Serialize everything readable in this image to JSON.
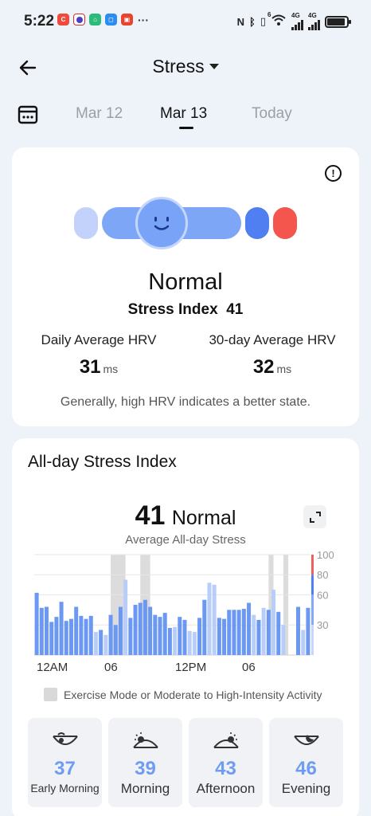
{
  "status_bar": {
    "time": "5:22",
    "network": [
      "4G",
      "4G"
    ],
    "wifi_badge": "6",
    "notification_icons": [
      "app-c-icon",
      "app-robot-icon",
      "app-home-icon",
      "app-chat-icon",
      "app-red-icon"
    ],
    "more_indicator": "···"
  },
  "header": {
    "title": "Stress",
    "back_icon": "back-arrow-icon"
  },
  "date_tabs": {
    "items": [
      "Mar 12",
      "Mar 13",
      "Today"
    ],
    "selected": "Mar 13"
  },
  "summary": {
    "state": "Normal",
    "stress_index_label": "Stress Index",
    "stress_index_value": "41",
    "daily_hrv_label": "Daily Average HRV",
    "daily_hrv_value": "31",
    "monthly_hrv_label": "30-day Average HRV",
    "monthly_hrv_value": "32",
    "hrv_unit": "ms",
    "note": "Generally, high HRV indicates a better state.",
    "gauge_colors": [
      "#c2d2fa",
      "#7ea6f6",
      "#4f7ff0",
      "#f4564e"
    ]
  },
  "all_day": {
    "title": "All-day Stress Index",
    "average_value": "41",
    "average_state": "Normal",
    "average_label": "Average All-day Stress",
    "legend": "Exercise Mode or Moderate to High-Intensity Activity",
    "periods": [
      {
        "icon": "early-morning-icon",
        "value": "37",
        "label": "Early Morning"
      },
      {
        "icon": "morning-sun-icon",
        "value": "39",
        "label": "Morning"
      },
      {
        "icon": "afternoon-sun-icon",
        "value": "43",
        "label": "Afternoon"
      },
      {
        "icon": "evening-moon-icon",
        "value": "46",
        "label": "Evening"
      }
    ]
  },
  "chart_data": {
    "type": "bar",
    "x_tick_labels": [
      "12AM",
      "06",
      "12PM",
      "06"
    ],
    "y_tick_labels": [
      "100",
      "80",
      "60",
      "30"
    ],
    "ylim": [
      0,
      100
    ],
    "grid": true,
    "bar_count": 56,
    "values": [
      62,
      47,
      48,
      33,
      38,
      53,
      34,
      36,
      48,
      39,
      36,
      39,
      23,
      25,
      20,
      40,
      30,
      48,
      75,
      37,
      50,
      52,
      55,
      48,
      40,
      38,
      42,
      27,
      28,
      38,
      35,
      24,
      23,
      37,
      55,
      72,
      70,
      37,
      36,
      45,
      45,
      45,
      46,
      52,
      40,
      35,
      47,
      45,
      65,
      43,
      30,
      null,
      null,
      48,
      25,
      47
    ],
    "highlight_flags": [
      0,
      0,
      0,
      0,
      0,
      0,
      0,
      0,
      0,
      0,
      0,
      0,
      1,
      0,
      1,
      0,
      0,
      0,
      1,
      0,
      0,
      0,
      0,
      0,
      0,
      0,
      0,
      0,
      1,
      0,
      0,
      1,
      1,
      0,
      0,
      1,
      1,
      0,
      0,
      0,
      0,
      0,
      0,
      0,
      1,
      0,
      1,
      0,
      1,
      0,
      1,
      0,
      0,
      0,
      1,
      0
    ],
    "exercise_windows": [
      [
        15.5,
        18.5
      ],
      [
        21.5,
        23.5
      ],
      [
        47.5,
        48.5
      ],
      [
        50.5,
        51.5
      ]
    ],
    "scale_colors": [
      {
        "range": [
          80,
          100
        ],
        "color": "#f0605a"
      },
      {
        "range": [
          60,
          80
        ],
        "color": "#4f7ff0"
      },
      {
        "range": [
          30,
          60
        ],
        "color": "#84aaf5"
      },
      {
        "range": [
          0,
          30
        ],
        "color": "#c7d7fb"
      }
    ],
    "bar_colors": {
      "normal": "#6a98f2",
      "light": "#b8cdfa"
    }
  }
}
